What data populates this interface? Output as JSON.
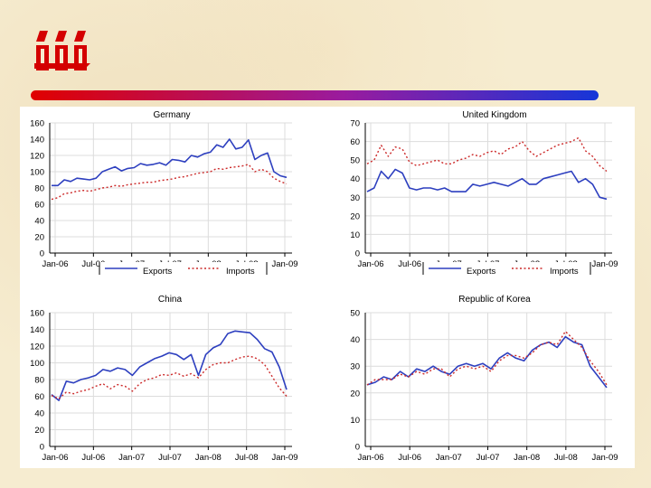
{
  "colors": {
    "exports": "#2d3fbf",
    "imports": "#cc2a2a",
    "logo": "#d40000"
  },
  "icons": {
    "logo": "stylized-red-logo-mark",
    "divider": "red-to-blue-gradient-bar"
  },
  "chart_data": [
    {
      "type": "line",
      "title": "Germany",
      "x_ticks": [
        "Jan-06",
        "Jul-06",
        "Jan-07",
        "Jul-07",
        "Jan-08",
        "Jul-08",
        "Jan-09"
      ],
      "ylim": [
        0,
        160
      ],
      "y_ticks": [
        0,
        20,
        40,
        60,
        80,
        100,
        120,
        140,
        160
      ],
      "legend": "bottom",
      "grid": true,
      "series": [
        {
          "name": "Exports",
          "style": "solid",
          "values": [
            83,
            83,
            90,
            88,
            92,
            91,
            90,
            92,
            100,
            103,
            106,
            101,
            104,
            105,
            110,
            108,
            109,
            111,
            108,
            115,
            114,
            112,
            120,
            118,
            122,
            124,
            133,
            130,
            140,
            128,
            130,
            139,
            115,
            120,
            123,
            100,
            95,
            93
          ]
        },
        {
          "name": "Imports",
          "style": "dotted",
          "values": [
            66,
            68,
            73,
            74,
            76,
            77,
            76,
            78,
            80,
            81,
            83,
            82,
            84,
            85,
            86,
            87,
            87,
            89,
            90,
            91,
            93,
            94,
            96,
            98,
            99,
            100,
            104,
            103,
            105,
            106,
            107,
            109,
            100,
            103,
            100,
            92,
            88,
            85
          ]
        }
      ]
    },
    {
      "type": "line",
      "title": "United Kingdom",
      "x_ticks": [
        "Jan-06",
        "Jul-06",
        "Jan-07",
        "Jul-07",
        "Jan-08",
        "Jul-08",
        "Jan-09"
      ],
      "ylim": [
        0,
        70
      ],
      "y_ticks": [
        0,
        10,
        20,
        30,
        40,
        50,
        60,
        70
      ],
      "legend": "bottom",
      "grid": true,
      "series": [
        {
          "name": "Exports",
          "style": "solid",
          "values": [
            33,
            35,
            44,
            40,
            45,
            43,
            35,
            34,
            35,
            35,
            34,
            35,
            33,
            33,
            33,
            37,
            36,
            37,
            38,
            37,
            36,
            38,
            40,
            37,
            37,
            40,
            41,
            42,
            43,
            44,
            38,
            40,
            37,
            30,
            29
          ]
        },
        {
          "name": "Imports",
          "style": "dotted",
          "values": [
            48,
            50,
            58,
            52,
            57,
            56,
            49,
            47,
            48,
            49,
            50,
            48,
            48,
            50,
            51,
            53,
            52,
            54,
            55,
            53,
            56,
            57,
            60,
            55,
            52,
            54,
            56,
            58,
            59,
            60,
            62,
            55,
            52,
            47,
            44
          ]
        }
      ]
    },
    {
      "type": "line",
      "title": "China",
      "x_ticks": [
        "Jan-06",
        "Jul-06",
        "Jan-07",
        "Jul-07",
        "Jan-08",
        "Jul-08",
        "Jan-09"
      ],
      "ylim": [
        0,
        160
      ],
      "y_ticks": [
        0,
        20,
        40,
        60,
        80,
        100,
        120,
        140,
        160
      ],
      "legend": "none",
      "grid": true,
      "series": [
        {
          "name": "Exports",
          "style": "solid",
          "values": [
            62,
            55,
            78,
            76,
            80,
            82,
            85,
            92,
            90,
            94,
            92,
            85,
            95,
            100,
            105,
            108,
            112,
            110,
            104,
            110,
            85,
            110,
            118,
            122,
            135,
            138,
            137,
            136,
            128,
            117,
            113,
            95,
            68
          ]
        },
        {
          "name": "Imports",
          "style": "dotted",
          "values": [
            61,
            57,
            65,
            63,
            66,
            68,
            72,
            75,
            69,
            74,
            72,
            66,
            75,
            80,
            82,
            86,
            85,
            88,
            84,
            87,
            82,
            92,
            98,
            100,
            100,
            104,
            107,
            108,
            105,
            98,
            84,
            70,
            60
          ]
        }
      ]
    },
    {
      "type": "line",
      "title": "Republic of Korea",
      "x_ticks": [
        "Jan-06",
        "Jul-06",
        "Jan-07",
        "Jul-07",
        "Jan-08",
        "Jul-08",
        "Jan-09"
      ],
      "ylim": [
        0,
        50
      ],
      "y_ticks": [
        0,
        10,
        20,
        30,
        40,
        50
      ],
      "legend": "none",
      "grid": true,
      "series": [
        {
          "name": "Exports",
          "style": "solid",
          "values": [
            23,
            24,
            26,
            25,
            28,
            26,
            29,
            28,
            30,
            28,
            27,
            30,
            31,
            30,
            31,
            29,
            33,
            35,
            33,
            32,
            36,
            38,
            39,
            37,
            41,
            39,
            38,
            30,
            26,
            22
          ]
        },
        {
          "name": "Imports",
          "style": "dotted",
          "values": [
            23,
            25,
            25,
            25,
            27,
            26,
            28,
            27,
            29,
            29,
            26,
            29,
            30,
            29,
            30,
            28,
            32,
            34,
            34,
            33,
            35,
            38,
            39,
            38,
            43,
            40,
            37,
            32,
            28,
            23
          ]
        }
      ]
    }
  ]
}
